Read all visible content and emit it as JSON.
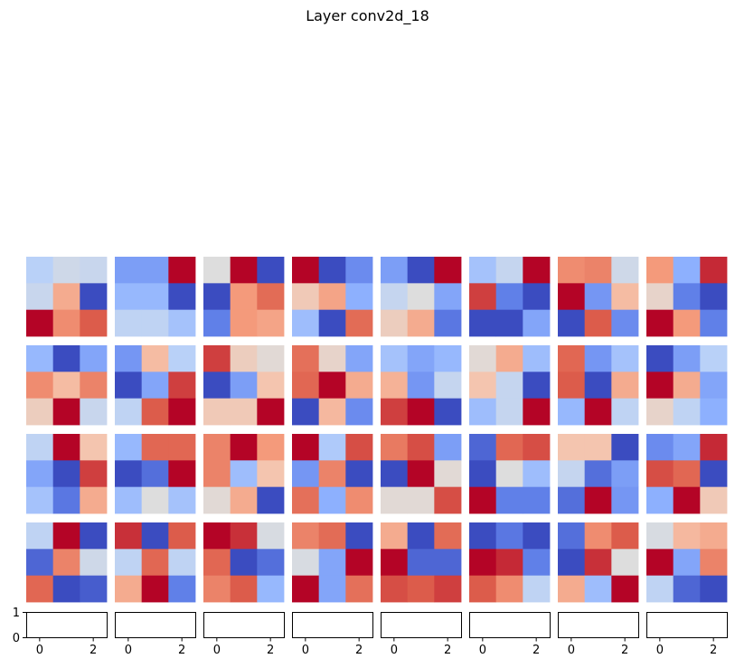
{
  "chart_data": {
    "type": "heatmap",
    "title": "Layer conv2d_18",
    "colormap": "coolwarm",
    "grid": {
      "rows": 4,
      "cols": 8
    },
    "filters": [
      [
        [
          0.38,
          0.45,
          0.43
        ],
        [
          0.43,
          0.7,
          0.0
        ],
        [
          1.0,
          0.78,
          0.88
        ]
      ],
      [
        [
          0.2,
          0.2,
          1.0
        ],
        [
          0.28,
          0.28,
          0.0
        ],
        [
          0.4,
          0.4,
          0.32
        ]
      ],
      [
        [
          0.5,
          1.0,
          0.0
        ],
        [
          0.0,
          0.75,
          0.85
        ],
        [
          0.12,
          0.75,
          0.72
        ]
      ],
      [
        [
          1.0,
          0.0,
          0.15
        ],
        [
          0.6,
          0.72,
          0.25
        ],
        [
          0.3,
          0.0,
          0.85
        ]
      ],
      [
        [
          0.2,
          0.0,
          1.0
        ],
        [
          0.42,
          0.5,
          0.22
        ],
        [
          0.58,
          0.7,
          0.1
        ]
      ],
      [
        [
          0.32,
          0.42,
          1.0
        ],
        [
          0.92,
          0.12,
          0.0
        ],
        [
          0.0,
          0.0,
          0.22
        ]
      ],
      [
        [
          0.78,
          0.8,
          0.45
        ],
        [
          1.0,
          0.18,
          0.65
        ],
        [
          0.0,
          0.88,
          0.15
        ]
      ],
      [
        [
          0.75,
          0.25,
          0.95
        ],
        [
          0.55,
          0.12,
          0.0
        ],
        [
          1.0,
          0.75,
          0.12
        ]
      ],
      [
        [
          0.28,
          0.0,
          0.22
        ],
        [
          0.78,
          0.65,
          0.8
        ],
        [
          0.58,
          1.0,
          0.43
        ]
      ],
      [
        [
          0.18,
          0.65,
          0.38
        ],
        [
          0.0,
          0.22,
          0.92
        ],
        [
          0.4,
          0.88,
          1.0
        ]
      ],
      [
        [
          0.92,
          0.58,
          0.52
        ],
        [
          0.0,
          0.2,
          0.62
        ],
        [
          0.6,
          0.6,
          1.0
        ]
      ],
      [
        [
          0.84,
          0.55,
          0.22
        ],
        [
          0.86,
          1.0,
          0.7
        ],
        [
          0.0,
          0.66,
          0.15
        ]
      ],
      [
        [
          0.32,
          0.22,
          0.28
        ],
        [
          0.68,
          0.18,
          0.42
        ],
        [
          0.92,
          1.0,
          0.0
        ]
      ],
      [
        [
          0.52,
          0.7,
          0.3
        ],
        [
          0.62,
          0.42,
          0.0
        ],
        [
          0.3,
          0.42,
          1.0
        ]
      ],
      [
        [
          0.86,
          0.18,
          0.32
        ],
        [
          0.88,
          0.0,
          0.7
        ],
        [
          0.28,
          1.0,
          0.4
        ]
      ],
      [
        [
          0.0,
          0.2,
          0.38
        ],
        [
          1.0,
          0.7,
          0.22
        ],
        [
          0.55,
          0.4,
          0.25
        ]
      ],
      [
        [
          0.4,
          1.0,
          0.62
        ],
        [
          0.22,
          0.0,
          0.92
        ],
        [
          0.32,
          0.1,
          0.7
        ]
      ],
      [
        [
          0.28,
          0.86,
          0.86
        ],
        [
          0.0,
          0.08,
          1.0
        ],
        [
          0.3,
          0.5,
          0.32
        ]
      ],
      [
        [
          0.8,
          1.0,
          0.75
        ],
        [
          0.8,
          0.3,
          0.62
        ],
        [
          0.52,
          0.7,
          0.0
        ]
      ],
      [
        [
          1.0,
          0.35,
          0.9
        ],
        [
          0.18,
          0.8,
          0.0
        ],
        [
          0.84,
          0.25,
          0.78
        ]
      ],
      [
        [
          0.82,
          0.9,
          0.2
        ],
        [
          0.0,
          1.0,
          0.52
        ],
        [
          0.52,
          0.52,
          0.9
        ]
      ],
      [
        [
          0.06,
          0.86,
          0.9
        ],
        [
          0.0,
          0.5,
          0.3
        ],
        [
          1.0,
          0.12,
          0.12
        ]
      ],
      [
        [
          0.62,
          0.62,
          0.0
        ],
        [
          0.42,
          0.08,
          0.2
        ],
        [
          0.08,
          1.0,
          0.18
        ]
      ],
      [
        [
          0.15,
          0.22,
          0.95
        ],
        [
          0.9,
          0.86,
          0.0
        ],
        [
          0.25,
          1.0,
          0.6
        ]
      ],
      [
        [
          0.4,
          1.0,
          0.0
        ],
        [
          0.06,
          0.8,
          0.45
        ],
        [
          0.86,
          0.0,
          0.04
        ]
      ],
      [
        [
          0.94,
          0.0,
          0.88
        ],
        [
          0.4,
          0.86,
          0.4
        ],
        [
          0.7,
          1.0,
          0.12
        ]
      ],
      [
        [
          1.0,
          0.94,
          0.48
        ],
        [
          0.86,
          0.0,
          0.08
        ],
        [
          0.8,
          0.88,
          0.28
        ]
      ],
      [
        [
          0.8,
          0.85,
          0.0
        ],
        [
          0.48,
          0.22,
          1.0
        ],
        [
          1.0,
          0.22,
          0.84
        ]
      ],
      [
        [
          0.7,
          0.0,
          0.85
        ],
        [
          1.0,
          0.06,
          0.06
        ],
        [
          0.9,
          0.88,
          0.92
        ]
      ],
      [
        [
          0.0,
          0.1,
          0.0
        ],
        [
          1.0,
          0.95,
          0.12
        ],
        [
          0.88,
          0.78,
          0.4
        ]
      ],
      [
        [
          0.08,
          0.78,
          0.88
        ],
        [
          0.0,
          0.94,
          0.5
        ],
        [
          0.7,
          0.3,
          1.0
        ]
      ],
      [
        [
          0.48,
          0.66,
          0.7
        ],
        [
          1.0,
          0.22,
          0.8
        ],
        [
          0.4,
          0.06,
          0.0
        ]
      ]
    ],
    "bottom_row": {
      "count": 8,
      "xticks": [
        "0",
        "2"
      ],
      "yticks": [
        "0",
        "1"
      ]
    }
  }
}
